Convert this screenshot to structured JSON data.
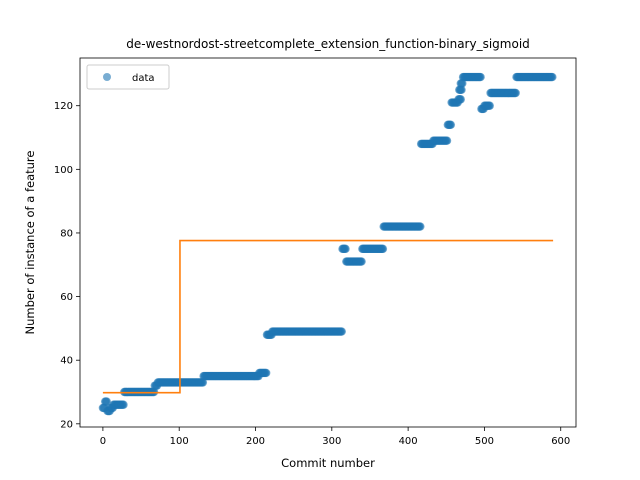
{
  "chart_data": {
    "type": "scatter",
    "title": "de-westnordost-streetcomplete_extension_function-binary_sigmoid",
    "xlabel": "Commit number",
    "ylabel": "Number of instance of a feature",
    "xlim": [
      -30,
      620
    ],
    "ylim": [
      19,
      135
    ],
    "xticks": [
      0,
      100,
      200,
      300,
      400,
      500,
      600
    ],
    "yticks": [
      20,
      40,
      60,
      80,
      100,
      120
    ],
    "legend": {
      "position": "top-left",
      "entries": [
        "data"
      ]
    },
    "grid": false,
    "colors": {
      "data": "#1f77b4",
      "fit": "#ff7f0e"
    },
    "series": [
      {
        "name": "data",
        "kind": "scatter",
        "segments": [
          {
            "x_start": 0,
            "x_end": 3,
            "y": 25
          },
          {
            "x_start": 3,
            "x_end": 6,
            "y": 27
          },
          {
            "x_start": 6,
            "x_end": 10,
            "y": 24
          },
          {
            "x_start": 10,
            "x_end": 14,
            "y": 25
          },
          {
            "x_start": 14,
            "x_end": 28,
            "y": 26
          },
          {
            "x_start": 28,
            "x_end": 68,
            "y": 30
          },
          {
            "x_start": 68,
            "x_end": 72,
            "y": 32
          },
          {
            "x_start": 72,
            "x_end": 132,
            "y": 33
          },
          {
            "x_start": 132,
            "x_end": 205,
            "y": 35
          },
          {
            "x_start": 205,
            "x_end": 215,
            "y": 36
          },
          {
            "x_start": 215,
            "x_end": 222,
            "y": 48
          },
          {
            "x_start": 222,
            "x_end": 314,
            "y": 49
          },
          {
            "x_start": 314,
            "x_end": 319,
            "y": 75
          },
          {
            "x_start": 319,
            "x_end": 340,
            "y": 71
          },
          {
            "x_start": 340,
            "x_end": 368,
            "y": 75
          },
          {
            "x_start": 368,
            "x_end": 417,
            "y": 82
          },
          {
            "x_start": 417,
            "x_end": 433,
            "y": 108
          },
          {
            "x_start": 433,
            "x_end": 452,
            "y": 109
          },
          {
            "x_start": 452,
            "x_end": 457,
            "y": 114
          },
          {
            "x_start": 457,
            "x_end": 466,
            "y": 121
          },
          {
            "x_start": 466,
            "x_end": 470,
            "y": 122
          },
          {
            "x_start": 467,
            "x_end": 471,
            "y": 125
          },
          {
            "x_start": 469,
            "x_end": 472,
            "y": 127
          },
          {
            "x_start": 472,
            "x_end": 496,
            "y": 129
          },
          {
            "x_start": 496,
            "x_end": 500,
            "y": 119
          },
          {
            "x_start": 500,
            "x_end": 508,
            "y": 120
          },
          {
            "x_start": 508,
            "x_end": 542,
            "y": 124
          },
          {
            "x_start": 542,
            "x_end": 590,
            "y": 129
          }
        ]
      },
      {
        "name": "",
        "kind": "line",
        "x": [
          0,
          101,
          101,
          590
        ],
        "y": [
          29.8,
          29.8,
          77.6,
          77.6
        ]
      }
    ]
  }
}
